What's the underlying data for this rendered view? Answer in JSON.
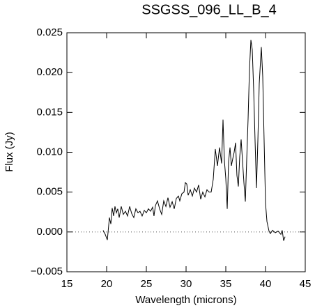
{
  "chart_data": {
    "type": "line",
    "title": "SSGSS_096_LL_B_4",
    "x_label": "Wavelength (microns)",
    "y_label": "Flux (Jy)",
    "xlim": [
      15,
      45
    ],
    "xticks": [
      15,
      20,
      25,
      30,
      35,
      40,
      45
    ],
    "ylim": [
      -0.005,
      0.025
    ],
    "yticks": [
      {
        "value": -0.005,
        "label": "−0.005"
      },
      {
        "value": 0,
        "label": "0.000"
      },
      0.005,
      {
        "value": 0.01,
        "label": "0.010"
      },
      0.015,
      {
        "value": 0.02,
        "label": "0.020"
      },
      0.025
    ],
    "zero_line": true,
    "color": "#000000",
    "x": [
      19.56,
      19.82,
      20.09,
      20.35,
      20.53,
      20.7,
      20.88,
      21.05,
      21.23,
      21.4,
      21.58,
      21.84,
      22.1,
      22.37,
      22.63,
      22.9,
      23.16,
      23.42,
      23.68,
      23.95,
      24.2,
      24.47,
      24.74,
      25.0,
      25.26,
      25.53,
      25.79,
      25.96,
      26.14,
      26.4,
      26.67,
      26.93,
      27.19,
      27.46,
      27.72,
      27.98,
      28.25,
      28.51,
      28.77,
      29.04,
      29.21,
      29.47,
      29.74,
      29.91,
      30.09,
      30.26,
      30.53,
      30.79,
      31.05,
      31.32,
      31.58,
      31.84,
      32.1,
      32.37,
      32.63,
      32.89,
      33.16,
      33.42,
      33.68,
      33.95,
      34.21,
      34.47,
      34.65,
      34.82,
      35.0,
      35.18,
      35.35,
      35.53,
      35.7,
      35.88,
      36.05,
      36.23,
      36.4,
      36.58,
      36.75,
      36.93,
      37.1,
      37.28,
      37.46,
      37.63,
      37.81,
      37.98,
      38.16,
      38.33,
      38.51,
      38.68,
      38.86,
      39.04,
      39.21,
      39.47,
      39.65,
      39.82,
      40.0,
      40.18,
      40.44,
      40.61,
      40.88,
      41.23,
      41.58,
      41.93,
      42.1,
      42.28,
      42.46
    ],
    "values": [
      0.0002,
      -0.0003,
      -0.001,
      0.0018,
      0.001,
      0.003,
      0.002,
      0.0032,
      0.0024,
      0.0029,
      0.0018,
      0.0032,
      0.0022,
      0.0026,
      0.002,
      0.0032,
      0.0023,
      0.0018,
      0.0029,
      0.0024,
      0.0026,
      0.002,
      0.0027,
      0.0024,
      0.0029,
      0.0026,
      0.0031,
      0.002,
      0.0033,
      0.0039,
      0.0029,
      0.0022,
      0.0039,
      0.0032,
      0.0043,
      0.0031,
      0.0038,
      0.0029,
      0.0042,
      0.0045,
      0.0039,
      0.0048,
      0.005,
      0.0062,
      0.006,
      0.0046,
      0.0053,
      0.0045,
      0.0055,
      0.005,
      0.0059,
      0.0041,
      0.005,
      0.0044,
      0.0053,
      0.005,
      0.005,
      0.0066,
      0.0104,
      0.0083,
      0.0106,
      0.0086,
      0.0141,
      0.009,
      0.0067,
      0.0029,
      0.0088,
      0.0106,
      0.0083,
      0.0092,
      0.01,
      0.0112,
      0.0071,
      0.0057,
      0.0094,
      0.0116,
      0.009,
      0.0062,
      0.0038,
      0.009,
      0.0143,
      0.0204,
      0.0241,
      0.0229,
      0.0178,
      0.0116,
      0.0055,
      0.0116,
      0.0186,
      0.0232,
      0.0195,
      0.0116,
      0.0036,
      0.0013,
      0.0001,
      -0.0002,
      0.0002,
      -0.0001,
      0.0001,
      -0.0003,
      0.0002,
      -0.0011,
      -0.0006
    ]
  }
}
